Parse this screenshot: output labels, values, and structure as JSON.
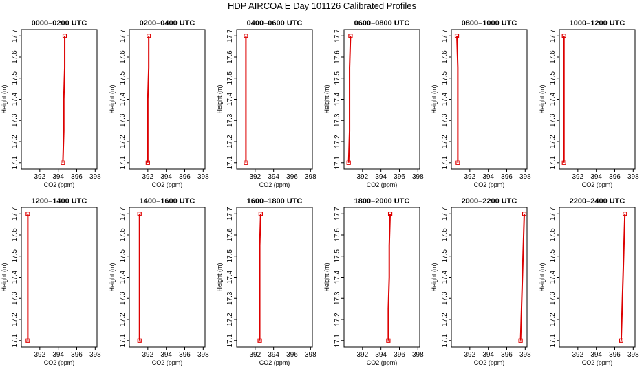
{
  "title": "HDP AIRCOA E  Day 101126  Calibrated Profiles",
  "line_color": "#dd0000",
  "chart_data": [
    {
      "type": "line",
      "title": "0000–0200 UTC",
      "xlabel": "CO2 (ppm)",
      "ylabel": "Height (m)",
      "xlim": [
        390,
        398.2
      ],
      "ylim": [
        17.07,
        17.73
      ],
      "xticks": [
        392,
        394,
        396,
        398
      ],
      "yticks": [
        17.1,
        17.2,
        17.3,
        17.4,
        17.5,
        17.6,
        17.7
      ],
      "x": [
        394.5,
        394.6,
        394.6,
        394.7,
        394.7
      ],
      "y": [
        17.1,
        17.25,
        17.4,
        17.55,
        17.7
      ]
    },
    {
      "type": "line",
      "title": "0200–0400 UTC",
      "xlabel": "CO2 (ppm)",
      "ylabel": "Height (m)",
      "xlim": [
        390,
        398.2
      ],
      "ylim": [
        17.07,
        17.73
      ],
      "xticks": [
        392,
        394,
        396,
        398
      ],
      "yticks": [
        17.1,
        17.2,
        17.3,
        17.4,
        17.5,
        17.6,
        17.7
      ],
      "x": [
        392.0,
        392.0,
        392.0,
        392.1,
        392.1
      ],
      "y": [
        17.1,
        17.25,
        17.4,
        17.55,
        17.7
      ]
    },
    {
      "type": "line",
      "title": "0400–0600 UTC",
      "xlabel": "CO2 (ppm)",
      "ylabel": "Height (m)",
      "xlim": [
        390,
        398.2
      ],
      "ylim": [
        17.07,
        17.73
      ],
      "xticks": [
        392,
        394,
        396,
        398
      ],
      "yticks": [
        17.1,
        17.2,
        17.3,
        17.4,
        17.5,
        17.6,
        17.7
      ],
      "x": [
        391.0,
        391.0,
        391.0,
        391.0,
        391.0
      ],
      "y": [
        17.1,
        17.25,
        17.4,
        17.55,
        17.7
      ]
    },
    {
      "type": "line",
      "title": "0600–0800 UTC",
      "xlabel": "CO2 (ppm)",
      "ylabel": "Height (m)",
      "xlim": [
        390,
        398.2
      ],
      "ylim": [
        17.07,
        17.73
      ],
      "xticks": [
        392,
        394,
        396,
        398
      ],
      "yticks": [
        17.1,
        17.2,
        17.3,
        17.4,
        17.5,
        17.6,
        17.7
      ],
      "x": [
        390.5,
        390.6,
        390.6,
        390.6,
        390.7
      ],
      "y": [
        17.1,
        17.25,
        17.4,
        17.55,
        17.7
      ]
    },
    {
      "type": "line",
      "title": "0800–1000 UTC",
      "xlabel": "CO2 (ppm)",
      "ylabel": "Height (m)",
      "xlim": [
        390,
        398.2
      ],
      "ylim": [
        17.07,
        17.73
      ],
      "xticks": [
        392,
        394,
        396,
        398
      ],
      "yticks": [
        17.1,
        17.2,
        17.3,
        17.4,
        17.5,
        17.6,
        17.7
      ],
      "x": [
        390.7,
        390.7,
        390.7,
        390.7,
        390.6
      ],
      "y": [
        17.1,
        17.25,
        17.4,
        17.55,
        17.7
      ]
    },
    {
      "type": "line",
      "title": "1000–1200 UTC",
      "xlabel": "CO2 (ppm)",
      "ylabel": "Height (m)",
      "xlim": [
        390,
        398.2
      ],
      "ylim": [
        17.07,
        17.73
      ],
      "xticks": [
        392,
        394,
        396,
        398
      ],
      "yticks": [
        17.1,
        17.2,
        17.3,
        17.4,
        17.5,
        17.6,
        17.7
      ],
      "x": [
        390.5,
        390.5,
        390.5,
        390.5,
        390.5
      ],
      "y": [
        17.1,
        17.25,
        17.4,
        17.55,
        17.7
      ]
    },
    {
      "type": "line",
      "title": "1200–1400 UTC",
      "xlabel": "CO2 (ppm)",
      "ylabel": "Height (m)",
      "xlim": [
        390,
        398.2
      ],
      "ylim": [
        17.07,
        17.73
      ],
      "xticks": [
        392,
        394,
        396,
        398
      ],
      "yticks": [
        17.1,
        17.2,
        17.3,
        17.4,
        17.5,
        17.6,
        17.7
      ],
      "x": [
        390.7,
        390.7,
        390.7,
        390.7,
        390.7
      ],
      "y": [
        17.1,
        17.25,
        17.4,
        17.55,
        17.7
      ]
    },
    {
      "type": "line",
      "title": "1400–1600 UTC",
      "xlabel": "CO2 (ppm)",
      "ylabel": "Height (m)",
      "xlim": [
        390,
        398.2
      ],
      "ylim": [
        17.07,
        17.73
      ],
      "xticks": [
        392,
        394,
        396,
        398
      ],
      "yticks": [
        17.1,
        17.2,
        17.3,
        17.4,
        17.5,
        17.6,
        17.7
      ],
      "x": [
        391.1,
        391.1,
        391.1,
        391.1,
        391.1
      ],
      "y": [
        17.1,
        17.25,
        17.4,
        17.55,
        17.7
      ]
    },
    {
      "type": "line",
      "title": "1600–1800 UTC",
      "xlabel": "CO2 (ppm)",
      "ylabel": "Height (m)",
      "xlim": [
        390,
        398.2
      ],
      "ylim": [
        17.07,
        17.73
      ],
      "xticks": [
        392,
        394,
        396,
        398
      ],
      "yticks": [
        17.1,
        17.2,
        17.3,
        17.4,
        17.5,
        17.6,
        17.7
      ],
      "x": [
        392.5,
        392.5,
        392.5,
        392.5,
        392.6
      ],
      "y": [
        17.1,
        17.25,
        17.4,
        17.55,
        17.7
      ]
    },
    {
      "type": "line",
      "title": "1800–2000 UTC",
      "xlabel": "CO2 (ppm)",
      "ylabel": "Height (m)",
      "xlim": [
        390,
        398.2
      ],
      "ylim": [
        17.07,
        17.73
      ],
      "xticks": [
        392,
        394,
        396,
        398
      ],
      "yticks": [
        17.1,
        17.2,
        17.3,
        17.4,
        17.5,
        17.6,
        17.7
      ],
      "x": [
        394.8,
        394.8,
        394.9,
        394.9,
        395.0
      ],
      "y": [
        17.1,
        17.25,
        17.4,
        17.55,
        17.7
      ]
    },
    {
      "type": "line",
      "title": "2000–2200 UTC",
      "xlabel": "CO2 (ppm)",
      "ylabel": "Height (m)",
      "xlim": [
        390,
        398.2
      ],
      "ylim": [
        17.07,
        17.73
      ],
      "xticks": [
        392,
        394,
        396,
        398
      ],
      "yticks": [
        17.1,
        17.2,
        17.3,
        17.4,
        17.5,
        17.6,
        17.7
      ],
      "x": [
        397.5,
        397.6,
        397.7,
        397.8,
        397.9
      ],
      "y": [
        17.1,
        17.25,
        17.4,
        17.55,
        17.7
      ]
    },
    {
      "type": "line",
      "title": "2200–2400 UTC",
      "xlabel": "CO2 (ppm)",
      "ylabel": "Height (m)",
      "xlim": [
        390,
        398.2
      ],
      "ylim": [
        17.07,
        17.73
      ],
      "xticks": [
        392,
        394,
        396,
        398
      ],
      "yticks": [
        17.1,
        17.2,
        17.3,
        17.4,
        17.5,
        17.6,
        17.7
      ],
      "x": [
        396.7,
        396.8,
        396.9,
        397.0,
        397.1
      ],
      "y": [
        17.1,
        17.25,
        17.4,
        17.55,
        17.7
      ]
    }
  ]
}
